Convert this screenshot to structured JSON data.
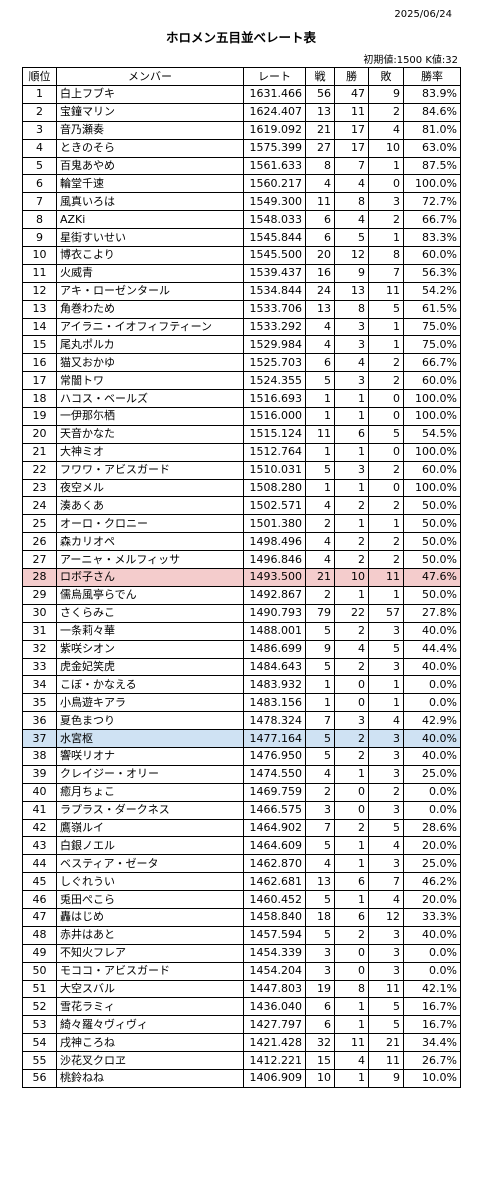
{
  "header": {
    "date": "2025/06/24",
    "title": "ホロメン五目並べレート表",
    "subtitle": "初期値:1500 K値:32"
  },
  "table": {
    "columns": [
      "順位",
      "メンバー",
      "レート",
      "戦",
      "勝",
      "敗",
      "勝率"
    ],
    "rows": [
      [
        "1",
        "白上フブキ",
        "1631.466",
        "56",
        "47",
        "9",
        "83.9%"
      ],
      [
        "2",
        "宝鐘マリン",
        "1624.407",
        "13",
        "11",
        "2",
        "84.6%"
      ],
      [
        "3",
        "音乃瀬奏",
        "1619.092",
        "21",
        "17",
        "4",
        "81.0%"
      ],
      [
        "4",
        "ときのそら",
        "1575.399",
        "27",
        "17",
        "10",
        "63.0%"
      ],
      [
        "5",
        "百鬼あやめ",
        "1561.633",
        "8",
        "7",
        "1",
        "87.5%"
      ],
      [
        "6",
        "輪堂千速",
        "1560.217",
        "4",
        "4",
        "0",
        "100.0%"
      ],
      [
        "7",
        "風真いろは",
        "1549.300",
        "11",
        "8",
        "3",
        "72.7%"
      ],
      [
        "8",
        "AZKi",
        "1548.033",
        "6",
        "4",
        "2",
        "66.7%"
      ],
      [
        "9",
        "星街すいせい",
        "1545.844",
        "6",
        "5",
        "1",
        "83.3%"
      ],
      [
        "10",
        "博衣こより",
        "1545.500",
        "20",
        "12",
        "8",
        "60.0%"
      ],
      [
        "11",
        "火威青",
        "1539.437",
        "16",
        "9",
        "7",
        "56.3%"
      ],
      [
        "12",
        "アキ・ローゼンタール",
        "1534.844",
        "24",
        "13",
        "11",
        "54.2%"
      ],
      [
        "13",
        "角巻わため",
        "1533.706",
        "13",
        "8",
        "5",
        "61.5%"
      ],
      [
        "14",
        "アイラニ・イオフィフティーン",
        "1533.292",
        "4",
        "3",
        "1",
        "75.0%"
      ],
      [
        "15",
        "尾丸ポルカ",
        "1529.984",
        "4",
        "3",
        "1",
        "75.0%"
      ],
      [
        "16",
        "猫又おかゆ",
        "1525.703",
        "6",
        "4",
        "2",
        "66.7%"
      ],
      [
        "17",
        "常闇トワ",
        "1524.355",
        "5",
        "3",
        "2",
        "60.0%"
      ],
      [
        "18",
        "ハコス・ベールズ",
        "1516.693",
        "1",
        "1",
        "0",
        "100.0%"
      ],
      [
        "19",
        "一伊那尓栖",
        "1516.000",
        "1",
        "1",
        "0",
        "100.0%"
      ],
      [
        "20",
        "天音かなた",
        "1515.124",
        "11",
        "6",
        "5",
        "54.5%"
      ],
      [
        "21",
        "大神ミオ",
        "1512.764",
        "1",
        "1",
        "0",
        "100.0%"
      ],
      [
        "22",
        "フワワ・アビスガード",
        "1510.031",
        "5",
        "3",
        "2",
        "60.0%"
      ],
      [
        "23",
        "夜空メル",
        "1508.280",
        "1",
        "1",
        "0",
        "100.0%"
      ],
      [
        "24",
        "湊あくあ",
        "1502.571",
        "4",
        "2",
        "2",
        "50.0%"
      ],
      [
        "25",
        "オーロ・クロニー",
        "1501.380",
        "2",
        "1",
        "1",
        "50.0%"
      ],
      [
        "26",
        "森カリオペ",
        "1498.496",
        "4",
        "2",
        "2",
        "50.0%"
      ],
      [
        "27",
        "アーニャ・メルフィッサ",
        "1496.846",
        "4",
        "2",
        "2",
        "50.0%"
      ],
      [
        "28",
        "ロボ子さん",
        "1493.500",
        "21",
        "10",
        "11",
        "47.6%"
      ],
      [
        "29",
        "儒烏風亭らでん",
        "1492.867",
        "2",
        "1",
        "1",
        "50.0%"
      ],
      [
        "30",
        "さくらみこ",
        "1490.793",
        "79",
        "22",
        "57",
        "27.8%"
      ],
      [
        "31",
        "一条莉々華",
        "1488.001",
        "5",
        "2",
        "3",
        "40.0%"
      ],
      [
        "32",
        "紫咲シオン",
        "1486.699",
        "9",
        "4",
        "5",
        "44.4%"
      ],
      [
        "33",
        "虎金妃笑虎",
        "1484.643",
        "5",
        "2",
        "3",
        "40.0%"
      ],
      [
        "34",
        "こぼ・かなえる",
        "1483.932",
        "1",
        "0",
        "1",
        "0.0%"
      ],
      [
        "35",
        "小鳥遊キアラ",
        "1483.156",
        "1",
        "0",
        "1",
        "0.0%"
      ],
      [
        "36",
        "夏色まつり",
        "1478.324",
        "7",
        "3",
        "4",
        "42.9%"
      ],
      [
        "37",
        "水宮枢",
        "1477.164",
        "5",
        "2",
        "3",
        "40.0%"
      ],
      [
        "38",
        "響咲リオナ",
        "1476.950",
        "5",
        "2",
        "3",
        "40.0%"
      ],
      [
        "39",
        "クレイジー・オリー",
        "1474.550",
        "4",
        "1",
        "3",
        "25.0%"
      ],
      [
        "40",
        "癒月ちょこ",
        "1469.759",
        "2",
        "0",
        "2",
        "0.0%"
      ],
      [
        "41",
        "ラプラス・ダークネス",
        "1466.575",
        "3",
        "0",
        "3",
        "0.0%"
      ],
      [
        "42",
        "鷹嶺ルイ",
        "1464.902",
        "7",
        "2",
        "5",
        "28.6%"
      ],
      [
        "43",
        "白銀ノエル",
        "1464.609",
        "5",
        "1",
        "4",
        "20.0%"
      ],
      [
        "44",
        "ベスティア・ゼータ",
        "1462.870",
        "4",
        "1",
        "3",
        "25.0%"
      ],
      [
        "45",
        "しぐれうい",
        "1462.681",
        "13",
        "6",
        "7",
        "46.2%"
      ],
      [
        "46",
        "兎田ぺこら",
        "1460.452",
        "5",
        "1",
        "4",
        "20.0%"
      ],
      [
        "47",
        "轟はじめ",
        "1458.840",
        "18",
        "6",
        "12",
        "33.3%"
      ],
      [
        "48",
        "赤井はあと",
        "1457.594",
        "5",
        "2",
        "3",
        "40.0%"
      ],
      [
        "49",
        "不知火フレア",
        "1454.339",
        "3",
        "0",
        "3",
        "0.0%"
      ],
      [
        "50",
        "モココ・アビスガード",
        "1454.204",
        "3",
        "0",
        "3",
        "0.0%"
      ],
      [
        "51",
        "大空スバル",
        "1447.803",
        "19",
        "8",
        "11",
        "42.1%"
      ],
      [
        "52",
        "雪花ラミィ",
        "1436.040",
        "6",
        "1",
        "5",
        "16.7%"
      ],
      [
        "53",
        "綺々羅々ヴィヴィ",
        "1427.797",
        "6",
        "1",
        "5",
        "16.7%"
      ],
      [
        "54",
        "戌神ころね",
        "1421.428",
        "32",
        "11",
        "21",
        "34.4%"
      ],
      [
        "55",
        "沙花叉クロヱ",
        "1412.221",
        "15",
        "4",
        "11",
        "26.7%"
      ],
      [
        "56",
        "桃鈴ねね",
        "1406.909",
        "10",
        "1",
        "9",
        "10.0%"
      ]
    ]
  }
}
